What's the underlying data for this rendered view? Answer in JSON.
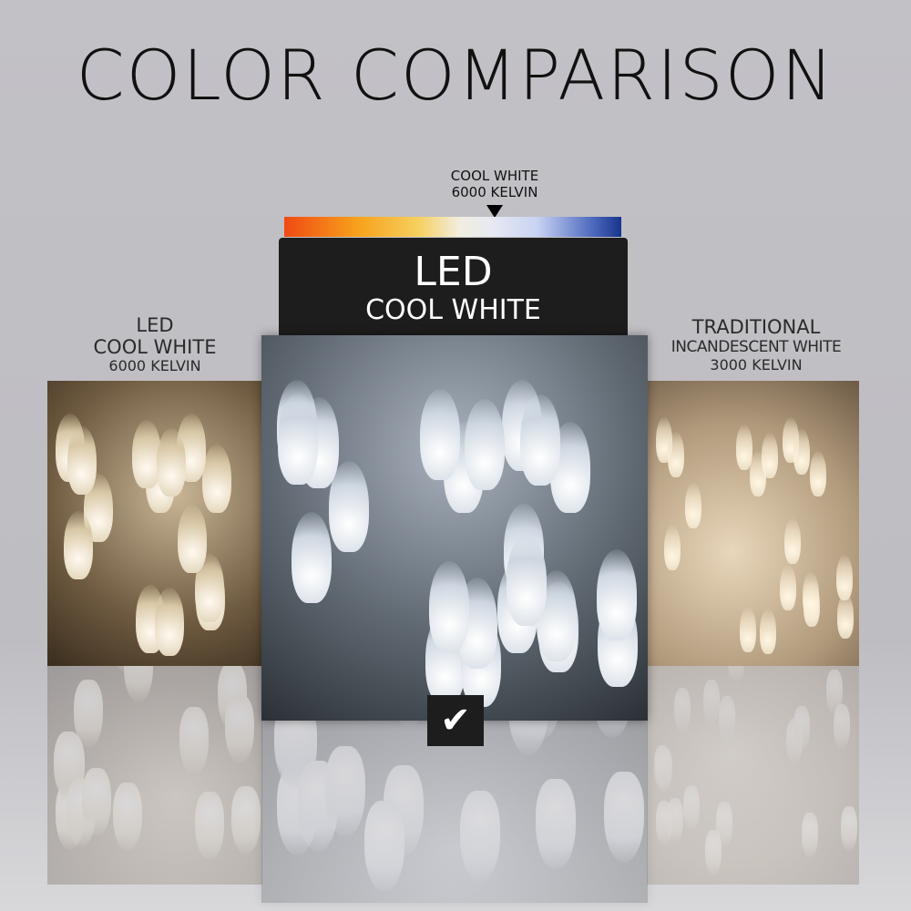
{
  "title": "COLOR COMPARISON",
  "scale": {
    "label_line1": "COOL WHITE",
    "label_line2": "6000 KELVIN",
    "marker_position_kelvin": 6000
  },
  "main_panel": {
    "line1": "LED",
    "line2": "COOL WHITE"
  },
  "left": {
    "line1": "LED",
    "line2": "COOL WHITE",
    "line3": "6000 KELVIN"
  },
  "right": {
    "line1": "TRADITIONAL",
    "line2": "INCANDESCENT WHITE",
    "line3": "3000 KELVIN"
  },
  "check_icon": "checkmark-icon",
  "colors": {
    "background": "#c2c1c6",
    "panel": "#1d1d1d",
    "scale_warm": "#f04a14",
    "scale_cool": "#17348e"
  }
}
